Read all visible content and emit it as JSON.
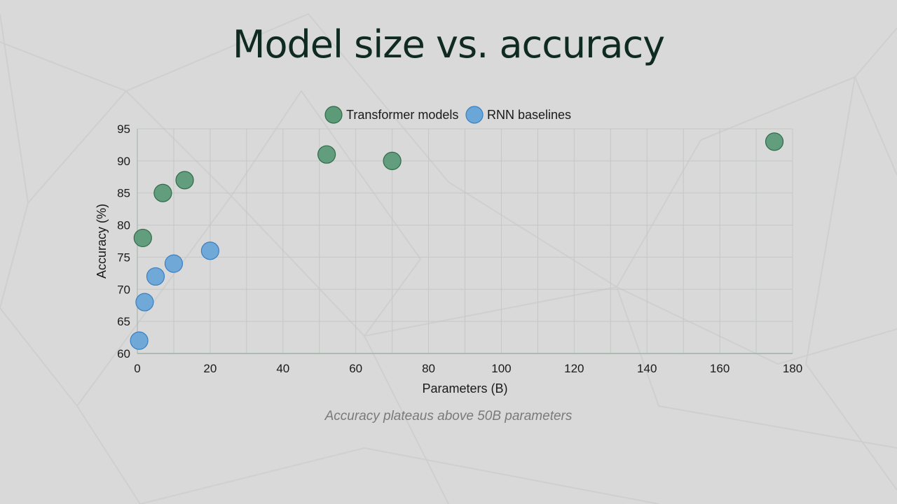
{
  "slide": {
    "title": "Model size vs. accuracy",
    "caption": "Accuracy plateaus above 50B parameters"
  },
  "colors": {
    "background": "#d9d9d9",
    "transformer_fill": "#5c9a78",
    "transformer_stroke": "#2f6b4a",
    "rnn_fill": "#6aa6d8",
    "rnn_stroke": "#3a7fc0",
    "grid": "#c2c9c4",
    "axis": "#9db3a6"
  },
  "chart_data": {
    "type": "scatter",
    "xlabel": "Parameters (B)",
    "ylabel": "Accuracy (%)",
    "xlim": [
      0,
      180
    ],
    "ylim": [
      60,
      95
    ],
    "xticks": [
      0,
      20,
      40,
      60,
      80,
      100,
      120,
      140,
      160,
      180
    ],
    "yticks": [
      60,
      65,
      70,
      75,
      80,
      85,
      90,
      95
    ],
    "grid": true,
    "legend": "top-center",
    "series": [
      {
        "name": "Transformer models",
        "points": [
          {
            "x": 1.5,
            "y": 78
          },
          {
            "x": 7,
            "y": 85
          },
          {
            "x": 13,
            "y": 87
          },
          {
            "x": 52,
            "y": 91
          },
          {
            "x": 70,
            "y": 90
          },
          {
            "x": 175,
            "y": 93
          }
        ]
      },
      {
        "name": "RNN baselines",
        "points": [
          {
            "x": 0.5,
            "y": 62
          },
          {
            "x": 2,
            "y": 68
          },
          {
            "x": 5,
            "y": 72
          },
          {
            "x": 10,
            "y": 74
          },
          {
            "x": 20,
            "y": 76
          }
        ]
      }
    ]
  }
}
